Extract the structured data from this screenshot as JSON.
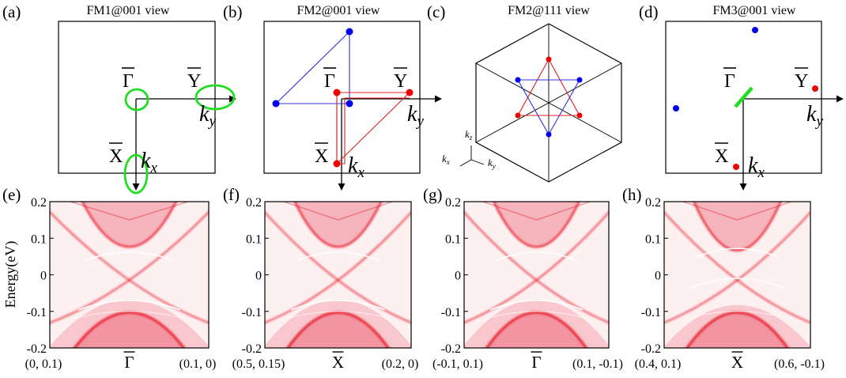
{
  "panels_top": [
    {
      "letter": "(a)",
      "title": "FM1@001 view"
    },
    {
      "letter": "(b)",
      "title": "FM2@001 view"
    },
    {
      "letter": "(c)",
      "title": "FM2@111 view"
    },
    {
      "letter": "(d)",
      "title": "FM3@001 view"
    }
  ],
  "symbols": {
    "gamma": "Γ",
    "y": "Y",
    "x": "X"
  },
  "axis_labels": {
    "kx_base": "k",
    "kx_sub": "x",
    "ky_base": "k",
    "ky_sub": "y",
    "kz_base": "k",
    "kz_sub": "z"
  },
  "ylabel": "Energy(eV)",
  "colors": {
    "blue": "#0000ee",
    "red": "#ee0000",
    "green": "#22dd22",
    "band": "#e8202e"
  },
  "chart_data": [
    {
      "panel": "(e)",
      "type": "heatmap",
      "ylim": [
        -0.2,
        0.2
      ],
      "yticks": [
        "0.2",
        "0.1",
        "0",
        "-0.1",
        "-0.2"
      ],
      "xticks": [
        "(0, 0.1)",
        "Γ",
        "(0.1, 0)"
      ]
    },
    {
      "panel": "(f)",
      "type": "heatmap",
      "ylim": [
        -0.2,
        0.2
      ],
      "yticks": [
        "0.2",
        "0.1",
        "0",
        "-0.1",
        "-0.2"
      ],
      "xticks": [
        "(0.5, 0.15)",
        "X",
        "(0.2, 0)"
      ]
    },
    {
      "panel": "(g)",
      "type": "heatmap",
      "ylim": [
        -0.2,
        0.2
      ],
      "yticks": [
        "0.2",
        "0.1",
        "0",
        "-0.1",
        "-0.2"
      ],
      "xticks": [
        "(-0.1, 0.1)",
        "Γ",
        "(0.1, -0.1)"
      ]
    },
    {
      "panel": "(h)",
      "type": "heatmap",
      "ylim": [
        -0.2,
        0.2
      ],
      "yticks": [
        "0.2",
        "0.1",
        "0",
        "-0.1",
        "-0.2"
      ],
      "xticks": [
        "(0.4, 0.1)",
        "X",
        "(0.6, -0.1)"
      ]
    }
  ]
}
